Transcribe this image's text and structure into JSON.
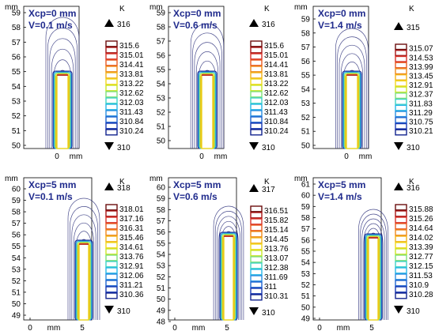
{
  "figure": {
    "unit_temperature": "K",
    "unit_length": "mm",
    "axis_colors": {
      "frame": "#000000",
      "contour_outer": "#2b2f7a",
      "rod": "#e8d21a",
      "tip": "#c0392b"
    },
    "colorbar_palette": [
      "#6b0d0d",
      "#a81616",
      "#d8332a",
      "#e85a22",
      "#ef8a1a",
      "#f2b31a",
      "#f1d81d",
      "#c9e62a",
      "#7fe07a",
      "#3fd3c6",
      "#27b7e6",
      "#2a8fe0",
      "#1f63cf",
      "#1a3ab3",
      "#12238f"
    ]
  },
  "panels": [
    {
      "id": "top-left",
      "xcp": "Xcp=0 mm",
      "v": "V=0.1 m/s",
      "tmax": "316",
      "tmin": "310",
      "y_ticks": [
        "59",
        "58",
        "57",
        "56",
        "55",
        "54",
        "53",
        "52",
        "51",
        "50"
      ],
      "x_ticks": [
        "0",
        "mm"
      ],
      "colorbar": [
        "315.6",
        "315.01",
        "314.41",
        "313.81",
        "313.22",
        "312.62",
        "312.03",
        "311.43",
        "310.84",
        "310.24"
      ],
      "tall": 1.0
    },
    {
      "id": "top-middle",
      "xcp": "Xcp=0 mm",
      "v": "V=0.6 m/s",
      "tmax": "316",
      "tmin": "310",
      "y_ticks": [
        "59",
        "58",
        "57",
        "56",
        "55",
        "54",
        "53",
        "52",
        "51",
        "50"
      ],
      "x_ticks": [
        "0",
        "mm"
      ],
      "colorbar": [
        "315.6",
        "315.01",
        "314.41",
        "313.81",
        "313.22",
        "312.62",
        "312.03",
        "311.43",
        "310.84",
        "310.24"
      ],
      "tall": 0.95
    },
    {
      "id": "top-right",
      "xcp": "Xcp=0 mm",
      "v": "V=1.4 m/s",
      "tmax": "315",
      "tmin": "310",
      "y_ticks": [
        "59",
        "58",
        "57",
        "56",
        "55",
        "54",
        "53",
        "52",
        "51",
        "50"
      ],
      "x_ticks": [
        "0",
        "mm"
      ],
      "colorbar": [
        "315.07",
        "314.53",
        "313.99",
        "313.45",
        "312.91",
        "312.37",
        "311.83",
        "311.29",
        "310.75",
        "310.21"
      ],
      "tall": 0.9
    },
    {
      "id": "bottom-left",
      "xcp": "Xcp=5 mm",
      "v": "V=0.1 m/s",
      "tmax": "318",
      "tmin": "310",
      "y_ticks": [
        "60",
        "59",
        "58",
        "57",
        "56",
        "55",
        "54",
        "53",
        "52",
        "51",
        "50",
        "49"
      ],
      "x_ticks": [
        "0",
        "mm",
        "5"
      ],
      "colorbar": [
        "318.01",
        "317.16",
        "316.31",
        "315.46",
        "314.61",
        "313.76",
        "312.91",
        "312.06",
        "311.21",
        "310.36"
      ],
      "tall": 1.0
    },
    {
      "id": "bottom-middle",
      "xcp": "Xcp=5 mm",
      "v": "V=0.6 m/s",
      "tmax": "317",
      "tmin": "310",
      "y_ticks": [
        "60",
        "59",
        "58",
        "57",
        "56",
        "55",
        "54",
        "53",
        "52",
        "51",
        "50",
        "49",
        "48"
      ],
      "x_ticks": [
        "0",
        "mm",
        "5"
      ],
      "colorbar": [
        "316.51",
        "315.82",
        "315.14",
        "314.45",
        "313.76",
        "313.07",
        "312.38",
        "311.69",
        "311",
        "310.31"
      ],
      "tall": 0.7
    },
    {
      "id": "bottom-right",
      "xcp": "Xcp=5 mm",
      "v": "V=1.4 m/s",
      "tmax": "316",
      "tmin": "310",
      "y_ticks": [
        "61",
        "60",
        "59",
        "58",
        "57",
        "56",
        "55",
        "54",
        "53",
        "52",
        "51",
        "50",
        "49"
      ],
      "x_ticks": [
        "0",
        "mm",
        "5"
      ],
      "colorbar": [
        "315.88",
        "315.26",
        "314.64",
        "314.02",
        "313.39",
        "312.77",
        "312.15",
        "311.53",
        "310.9",
        "310.28"
      ],
      "tall": 0.6
    }
  ]
}
